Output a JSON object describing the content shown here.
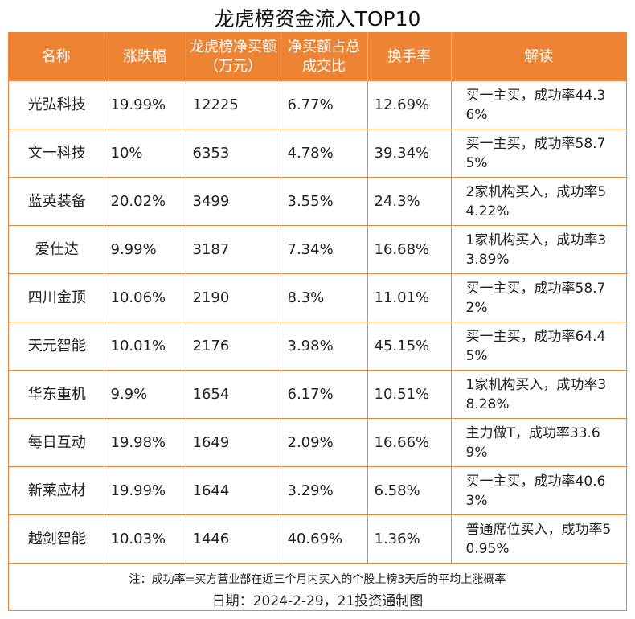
{
  "title": "龙虎榜资金流入TOP10",
  "headers": [
    "名称",
    "涨跌幅",
    "龙虎榜净买额（万元）",
    "净买额占总成交比",
    "换手率",
    "解读"
  ],
  "rows": [
    {
      "name": "光弘科技",
      "change": "19.99%",
      "net_buy": "12225",
      "ratio": "6.77%",
      "turnover": "12.69%",
      "reading": "买一主买，成功率44.36%"
    },
    {
      "name": "文一科技",
      "change": "10%",
      "net_buy": "6353",
      "ratio": "4.78%",
      "turnover": "39.34%",
      "reading": "买一主买，成功率58.75%"
    },
    {
      "name": "蓝英装备",
      "change": "20.02%",
      "net_buy": "3499",
      "ratio": "3.55%",
      "turnover": "24.3%",
      "reading": "2家机构买入，成功率54.22%"
    },
    {
      "name": "爱仕达",
      "change": "9.99%",
      "net_buy": "3187",
      "ratio": "7.34%",
      "turnover": "16.68%",
      "reading": "1家机构买入，成功率33.89%"
    },
    {
      "name": "四川金顶",
      "change": "10.06%",
      "net_buy": "2190",
      "ratio": "8.3%",
      "turnover": "11.01%",
      "reading": "买一主买，成功率58.72%"
    },
    {
      "name": "天元智能",
      "change": "10.01%",
      "net_buy": "2176",
      "ratio": "3.98%",
      "turnover": "45.15%",
      "reading": "买一主买，成功率64.45%"
    },
    {
      "name": "华东重机",
      "change": "9.9%",
      "net_buy": "1654",
      "ratio": "6.17%",
      "turnover": "10.51%",
      "reading": "1家机构买入，成功率38.28%"
    },
    {
      "name": "每日互动",
      "change": "19.98%",
      "net_buy": "1649",
      "ratio": "2.09%",
      "turnover": "16.66%",
      "reading": "主力做T，成功率33.69%"
    },
    {
      "name": "新莱应材",
      "change": "19.99%",
      "net_buy": "1644",
      "ratio": "3.29%",
      "turnover": "6.58%",
      "reading": "买一主买，成功率40.63%"
    },
    {
      "name": "越剑智能",
      "change": "10.03%",
      "net_buy": "1446",
      "ratio": "40.69%",
      "turnover": "1.36%",
      "reading": "普通席位买入，成功率50.95%"
    }
  ],
  "note": "注：成功率=买方营业部在近三个月内买入的个股上榜3天后的平均上涨概率",
  "date_line": "日期：2024-2-29，21投资通制图",
  "colors": {
    "accent": "#ee8433",
    "header_text": "#ffffff"
  }
}
